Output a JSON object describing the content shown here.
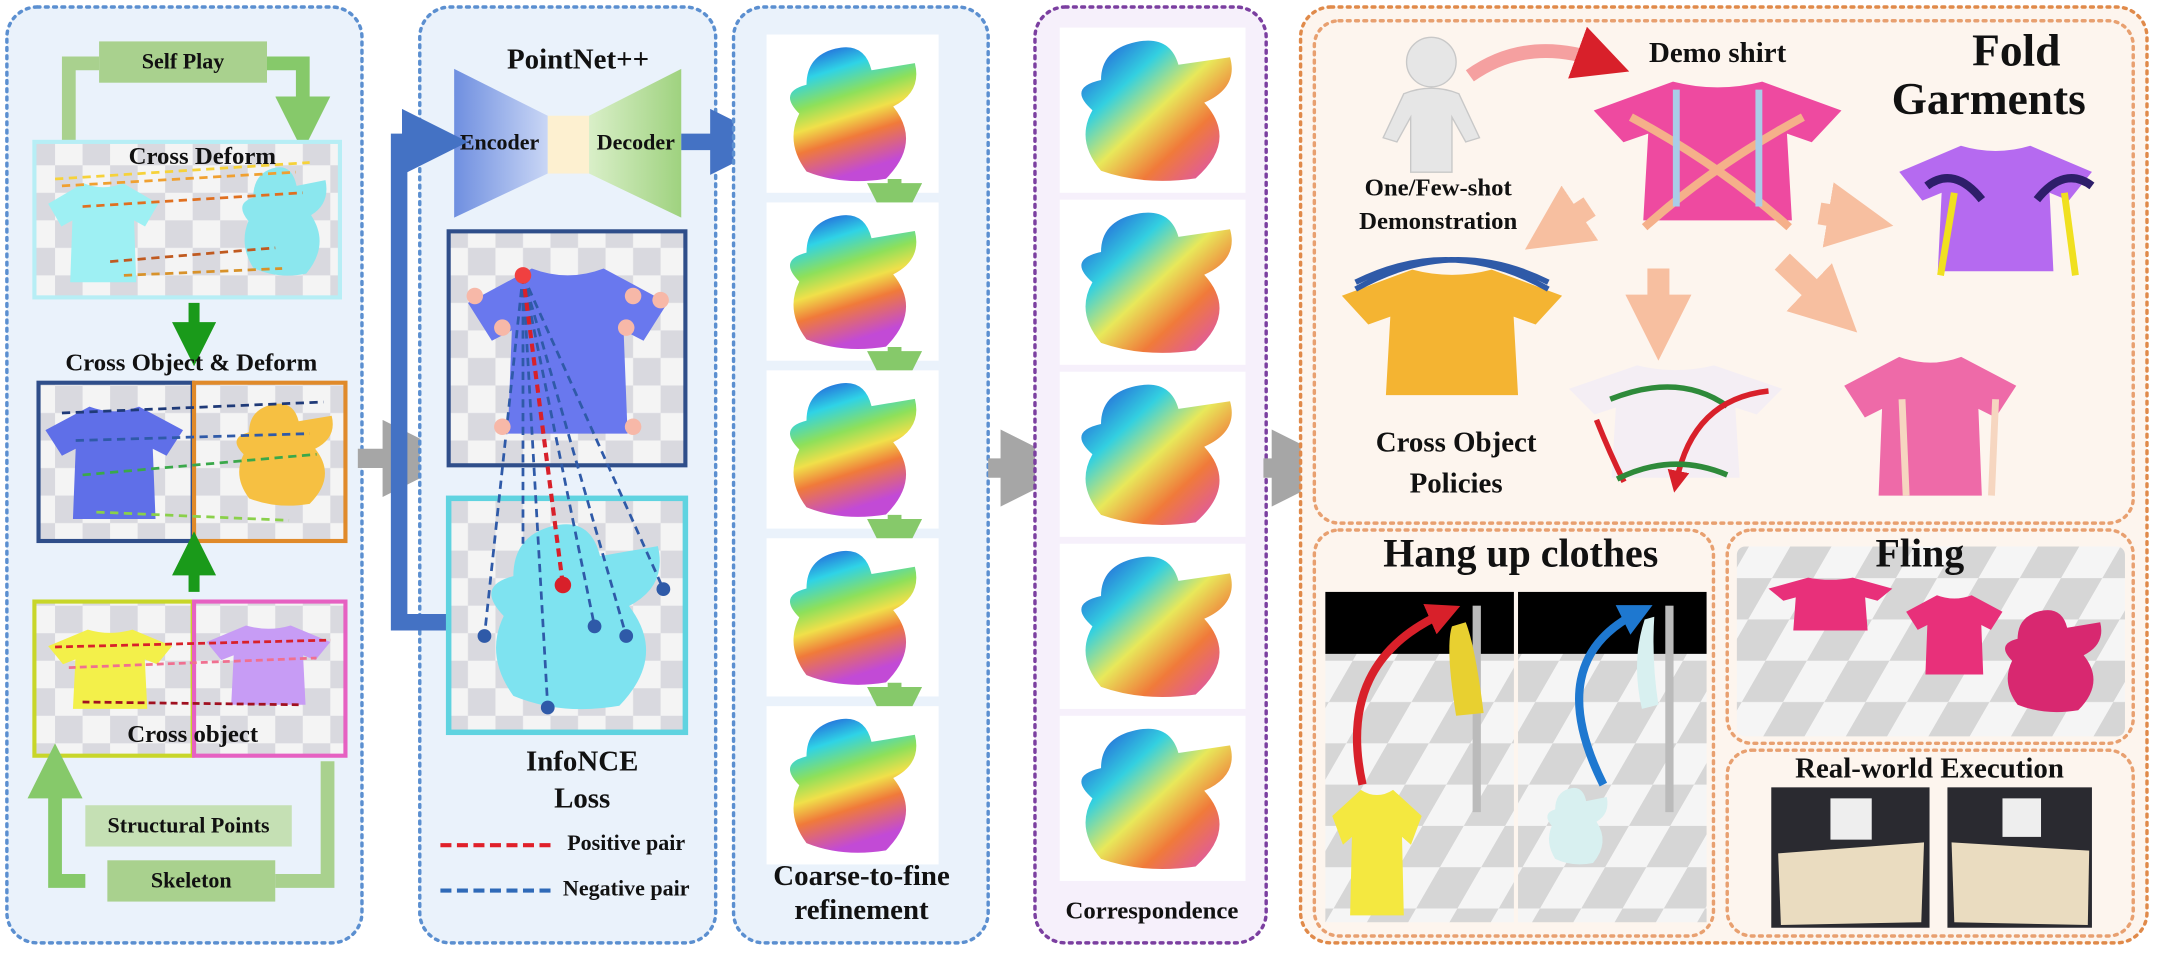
{
  "pipeline": {
    "self_play": "Self Play",
    "cross_deform": "Cross Deform",
    "cross_object_deform": "Cross Object & Deform",
    "cross_object": "Cross object",
    "structural_points": "Structural Points",
    "skeleton": "Skeleton"
  },
  "network": {
    "backbone": "PointNet++",
    "encoder": "Encoder",
    "decoder": "Decoder",
    "loss": [
      "InfoNCE",
      "Loss"
    ],
    "legend": [
      "Positive pair",
      "Negative pair"
    ]
  },
  "refinement": [
    "Coarse-to-fine",
    "refinement"
  ],
  "correspondence": "Correspondence",
  "applications": {
    "demo": "Demo shirt",
    "fold": [
      "Fold",
      "Garments"
    ],
    "demonstration": [
      "One/Few-shot",
      "Demonstration"
    ],
    "policies": [
      "Cross Object",
      "Policies"
    ],
    "hang": "Hang up clothes",
    "fling": "Fling",
    "real_world": "Real-world Execution"
  }
}
